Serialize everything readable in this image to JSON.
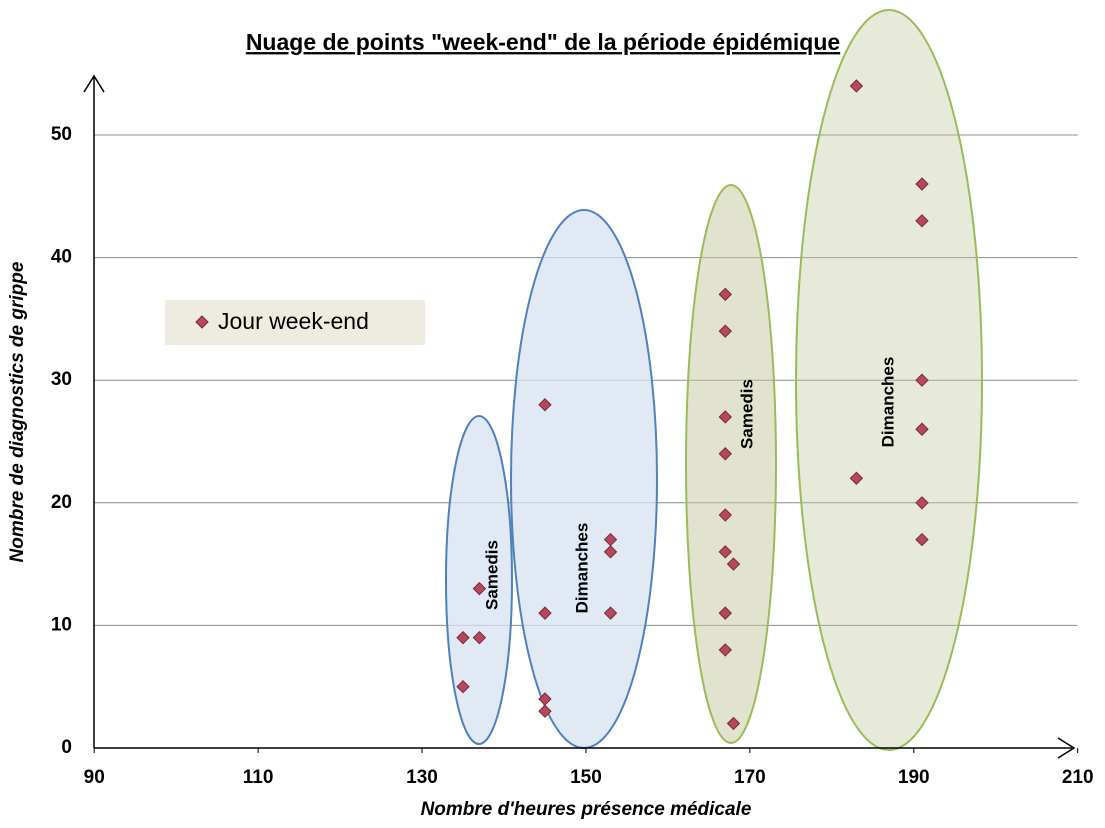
{
  "chart_data": {
    "type": "scatter",
    "title": "Nuage de points \"week-end\" de la période épidémique",
    "x_label": "Nombre d'heures présence médicale",
    "y_label": "Nombre de diagnostics de grippe",
    "xlim": [
      90,
      210
    ],
    "ylim": [
      0,
      55
    ],
    "xticks": [
      90,
      110,
      130,
      150,
      170,
      190,
      210
    ],
    "yticks": [
      0,
      10,
      20,
      30,
      40,
      50
    ],
    "grid": true,
    "legend": "left",
    "series": [
      {
        "name": "Jour week-end",
        "color": "#b5495b",
        "x": [
          135,
          135,
          137,
          137,
          145,
          145,
          145,
          145,
          153,
          153,
          153,
          167,
          167,
          167,
          167,
          167,
          167,
          167,
          167,
          168,
          168,
          183,
          183,
          191,
          191,
          191,
          191,
          191,
          191
        ],
        "values": [
          9,
          5,
          13,
          9,
          28,
          11,
          4,
          3,
          17,
          16,
          11,
          37,
          34,
          27,
          24,
          19,
          16,
          11,
          8,
          15,
          2,
          54,
          22,
          46,
          43,
          30,
          26,
          20,
          17
        ]
      }
    ],
    "annotations": [
      {
        "text": "Samedis",
        "color": "#4f81bd"
      },
      {
        "text": "Dimanches",
        "color": "#4f81bd"
      },
      {
        "text": "Samedis",
        "color": "#77933c"
      },
      {
        "text": "Dimanches",
        "color": "#77933c"
      }
    ]
  }
}
